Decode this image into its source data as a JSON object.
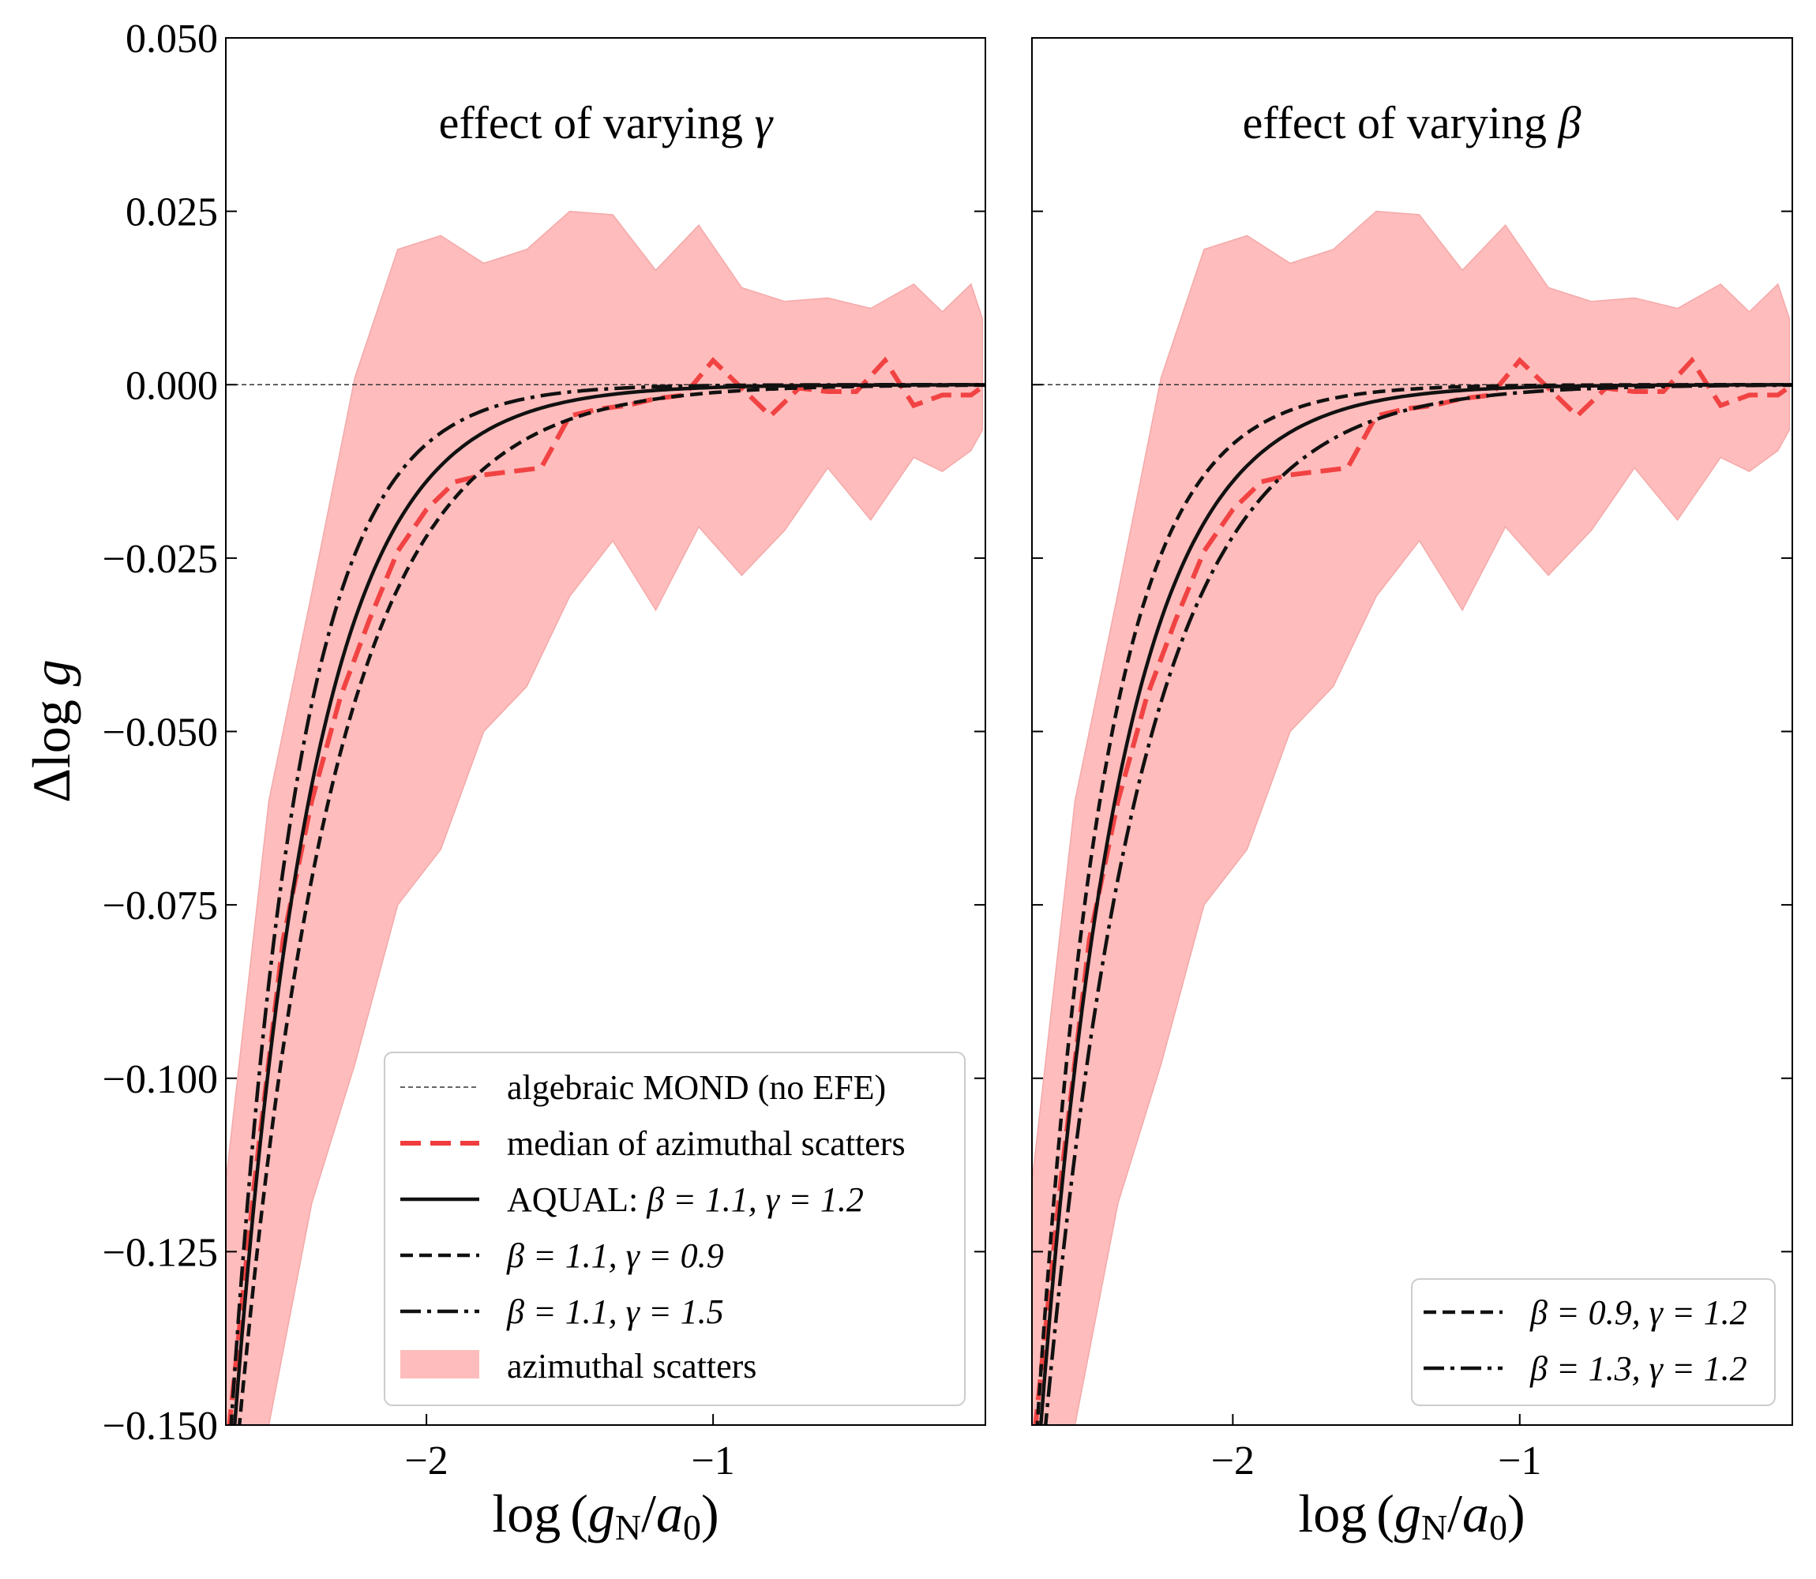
{
  "chart_data": {
    "type": "line",
    "ylabel_parts": {
      "delta": "Δ",
      "log": "log ",
      "g": "g"
    },
    "xlabel_parts": {
      "log": "log",
      "open": "(",
      "g": "g",
      "sub": "N",
      "slash": "/",
      "a": "a",
      "zero": "0",
      "close": ")"
    },
    "xlim": [
      -2.7,
      -0.05
    ],
    "ylim": [
      -0.15,
      0.05
    ],
    "x_ticks": [
      -2,
      -1
    ],
    "x_tick_labels": [
      "−2",
      "−1"
    ],
    "y_ticks": [
      0.05,
      0.025,
      0.0,
      -0.025,
      -0.05,
      -0.075,
      -0.1,
      -0.125,
      -0.15
    ],
    "y_tick_labels": [
      "0.050",
      "0.025",
      "0.000",
      "−0.025",
      "−0.050",
      "−0.075",
      "−0.100",
      "−0.125",
      "−0.150"
    ],
    "reference_line": {
      "y": 0.0,
      "label": "algebraic MOND (no EFE)"
    },
    "scatter_band": {
      "label": "azimuthal scatters",
      "x": [
        -2.7,
        -2.55,
        -2.4,
        -2.25,
        -2.1,
        -1.95,
        -1.8,
        -1.65,
        -1.5,
        -1.35,
        -1.2,
        -1.05,
        -0.9,
        -0.75,
        -0.6,
        -0.45,
        -0.3,
        -0.2,
        -0.1,
        -0.06
      ],
      "upper": [
        -0.115,
        -0.06,
        -0.03,
        0.001,
        0.0195,
        0.0215,
        0.0175,
        0.0195,
        0.025,
        0.0245,
        0.0165,
        0.023,
        0.014,
        0.012,
        0.0125,
        0.011,
        0.0145,
        0.0105,
        0.0145,
        0.0095
      ],
      "lower": [
        -0.15,
        -0.15,
        -0.118,
        -0.098,
        -0.075,
        -0.067,
        -0.05,
        -0.0435,
        -0.0305,
        -0.0225,
        -0.0325,
        -0.0205,
        -0.0275,
        -0.021,
        -0.012,
        -0.0195,
        -0.0105,
        -0.0125,
        -0.0095,
        -0.0065
      ]
    },
    "median": {
      "label": "median of azimuthal scatters",
      "x": [
        -2.7,
        -2.6,
        -2.5,
        -2.4,
        -2.3,
        -2.2,
        -2.1,
        -2.0,
        -1.9,
        -1.8,
        -1.7,
        -1.6,
        -1.5,
        -1.4,
        -1.3,
        -1.2,
        -1.1,
        -1.0,
        -0.9,
        -0.8,
        -0.7,
        -0.6,
        -0.5,
        -0.4,
        -0.3,
        -0.2,
        -0.1,
        -0.05
      ],
      "y": [
        -0.155,
        -0.115,
        -0.08,
        -0.06,
        -0.045,
        -0.034,
        -0.024,
        -0.018,
        -0.014,
        -0.013,
        -0.0125,
        -0.012,
        -0.0045,
        -0.0035,
        -0.003,
        -0.002,
        -0.0015,
        0.0035,
        -0.0005,
        -0.0045,
        -0.0005,
        -0.001,
        -0.001,
        0.0035,
        -0.003,
        -0.0015,
        -0.0015,
        0.0
      ]
    },
    "panels": [
      {
        "title_text": "effect of varying ",
        "title_symbol": "γ",
        "curves": [
          {
            "label_text": "AQUAL: ",
            "label_math": "β = 1.1, γ = 1.2",
            "style": "solid",
            "k": 3.55
          },
          {
            "label_text": "",
            "label_math": "β = 1.1, γ = 0.9",
            "style": "dashed",
            "k": 2.95
          },
          {
            "label_text": "",
            "label_math": "β = 1.1, γ = 1.5",
            "style": "dashdot",
            "k": 4.2
          }
        ],
        "legend_position": "lower-right"
      },
      {
        "title_text": "effect of varying ",
        "title_symbol": "β",
        "curves": [
          {
            "label_text": "",
            "label_math": "β = 0.9, γ = 1.2",
            "style": "dashed",
            "k": 4.2
          },
          {
            "label_text": "",
            "label_math": "β = 1.3, γ = 1.2",
            "style": "dashdot",
            "k": 2.95
          }
        ],
        "reference_curve": {
          "style": "solid",
          "k": 3.55
        },
        "legend_position": "lower-right"
      }
    ],
    "colors": {
      "band": "#ffbcbc",
      "median": "#f03c3c",
      "curves": "#111111",
      "reference": "#333333"
    }
  }
}
